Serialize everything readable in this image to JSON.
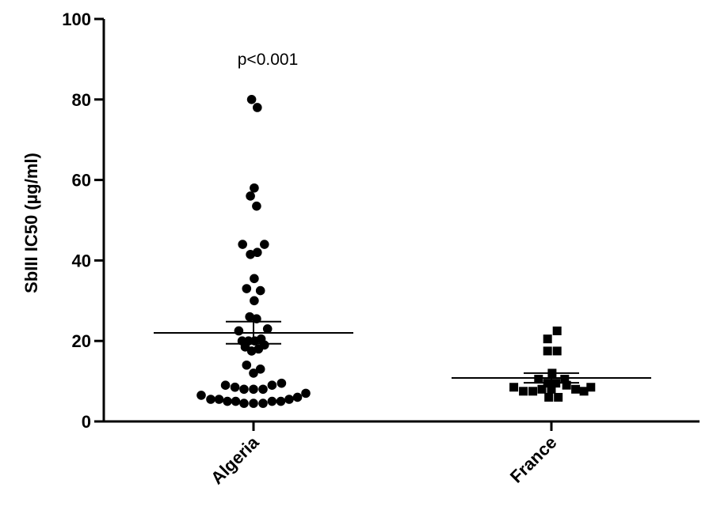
{
  "chart_data": {
    "type": "scatter",
    "ylabel": "SbIII IC50 (µg/ml)",
    "ylim": [
      0,
      100
    ],
    "yticks": [
      0,
      20,
      40,
      60,
      80,
      100
    ],
    "categories": [
      "Algeria",
      "France"
    ],
    "annotation": "p<0.001",
    "grid": false,
    "series": [
      {
        "category": "Algeria",
        "marker": "circle",
        "mean": 22,
        "sem_upper": 24.8,
        "sem_lower": 19.3,
        "points": [
          {
            "offset": -0.008,
            "value": 80
          },
          {
            "offset": 0.016,
            "value": 78
          },
          {
            "offset": 0.003,
            "value": 58
          },
          {
            "offset": -0.013,
            "value": 56
          },
          {
            "offset": 0.013,
            "value": 53.5
          },
          {
            "offset": -0.046,
            "value": 44
          },
          {
            "offset": 0.046,
            "value": 44
          },
          {
            "offset": -0.013,
            "value": 41.5
          },
          {
            "offset": 0.016,
            "value": 42
          },
          {
            "offset": 0.003,
            "value": 35.5
          },
          {
            "offset": -0.029,
            "value": 33
          },
          {
            "offset": 0.029,
            "value": 32.5
          },
          {
            "offset": 0.003,
            "value": 30
          },
          {
            "offset": -0.016,
            "value": 26
          },
          {
            "offset": 0.013,
            "value": 25.5
          },
          {
            "offset": -0.062,
            "value": 22.5
          },
          {
            "offset": 0.059,
            "value": 23
          },
          {
            "offset": -0.048,
            "value": 20
          },
          {
            "offset": -0.021,
            "value": 20
          },
          {
            "offset": 0.005,
            "value": 20
          },
          {
            "offset": 0.032,
            "value": 20.5
          },
          {
            "offset": -0.035,
            "value": 18.5
          },
          {
            "offset": -0.008,
            "value": 17.5
          },
          {
            "offset": 0.021,
            "value": 18
          },
          {
            "offset": 0.046,
            "value": 19
          },
          {
            "offset": -0.029,
            "value": 14
          },
          {
            "offset": 0.029,
            "value": 13
          },
          {
            "offset": 0.0,
            "value": 12
          },
          {
            "offset": -0.118,
            "value": 9
          },
          {
            "offset": -0.078,
            "value": 8.5
          },
          {
            "offset": -0.04,
            "value": 8
          },
          {
            "offset": 0.0,
            "value": 8
          },
          {
            "offset": 0.04,
            "value": 8
          },
          {
            "offset": 0.078,
            "value": 9
          },
          {
            "offset": 0.118,
            "value": 9.5
          },
          {
            "offset": -0.22,
            "value": 6.5
          },
          {
            "offset": -0.18,
            "value": 5.5
          },
          {
            "offset": -0.145,
            "value": 5.5
          },
          {
            "offset": -0.11,
            "value": 5
          },
          {
            "offset": -0.075,
            "value": 5
          },
          {
            "offset": -0.04,
            "value": 4.5
          },
          {
            "offset": 0.0,
            "value": 4.5
          },
          {
            "offset": 0.04,
            "value": 4.5
          },
          {
            "offset": 0.078,
            "value": 5
          },
          {
            "offset": 0.115,
            "value": 5
          },
          {
            "offset": 0.15,
            "value": 5.5
          },
          {
            "offset": 0.185,
            "value": 6
          },
          {
            "offset": 0.22,
            "value": 7
          }
        ]
      },
      {
        "category": "France",
        "marker": "square",
        "mean": 10.8,
        "sem_upper": 12.0,
        "sem_lower": 9.6,
        "points": [
          {
            "offset": 0.024,
            "value": 22.5
          },
          {
            "offset": -0.016,
            "value": 20.5
          },
          {
            "offset": -0.016,
            "value": 17.5
          },
          {
            "offset": 0.024,
            "value": 17.5
          },
          {
            "offset": 0.003,
            "value": 12
          },
          {
            "offset": -0.054,
            "value": 10.5
          },
          {
            "offset": 0.056,
            "value": 10.5
          },
          {
            "offset": -0.016,
            "value": 9.5
          },
          {
            "offset": 0.019,
            "value": 9.5
          },
          {
            "offset": -0.158,
            "value": 8.5
          },
          {
            "offset": -0.118,
            "value": 7.5
          },
          {
            "offset": -0.078,
            "value": 7.5
          },
          {
            "offset": -0.04,
            "value": 8
          },
          {
            "offset": 0.0,
            "value": 8
          },
          {
            "offset": 0.064,
            "value": 9
          },
          {
            "offset": 0.102,
            "value": 8
          },
          {
            "offset": 0.137,
            "value": 7.5
          },
          {
            "offset": 0.166,
            "value": 8.5
          },
          {
            "offset": -0.011,
            "value": 6
          },
          {
            "offset": 0.029,
            "value": 6
          }
        ]
      }
    ]
  }
}
